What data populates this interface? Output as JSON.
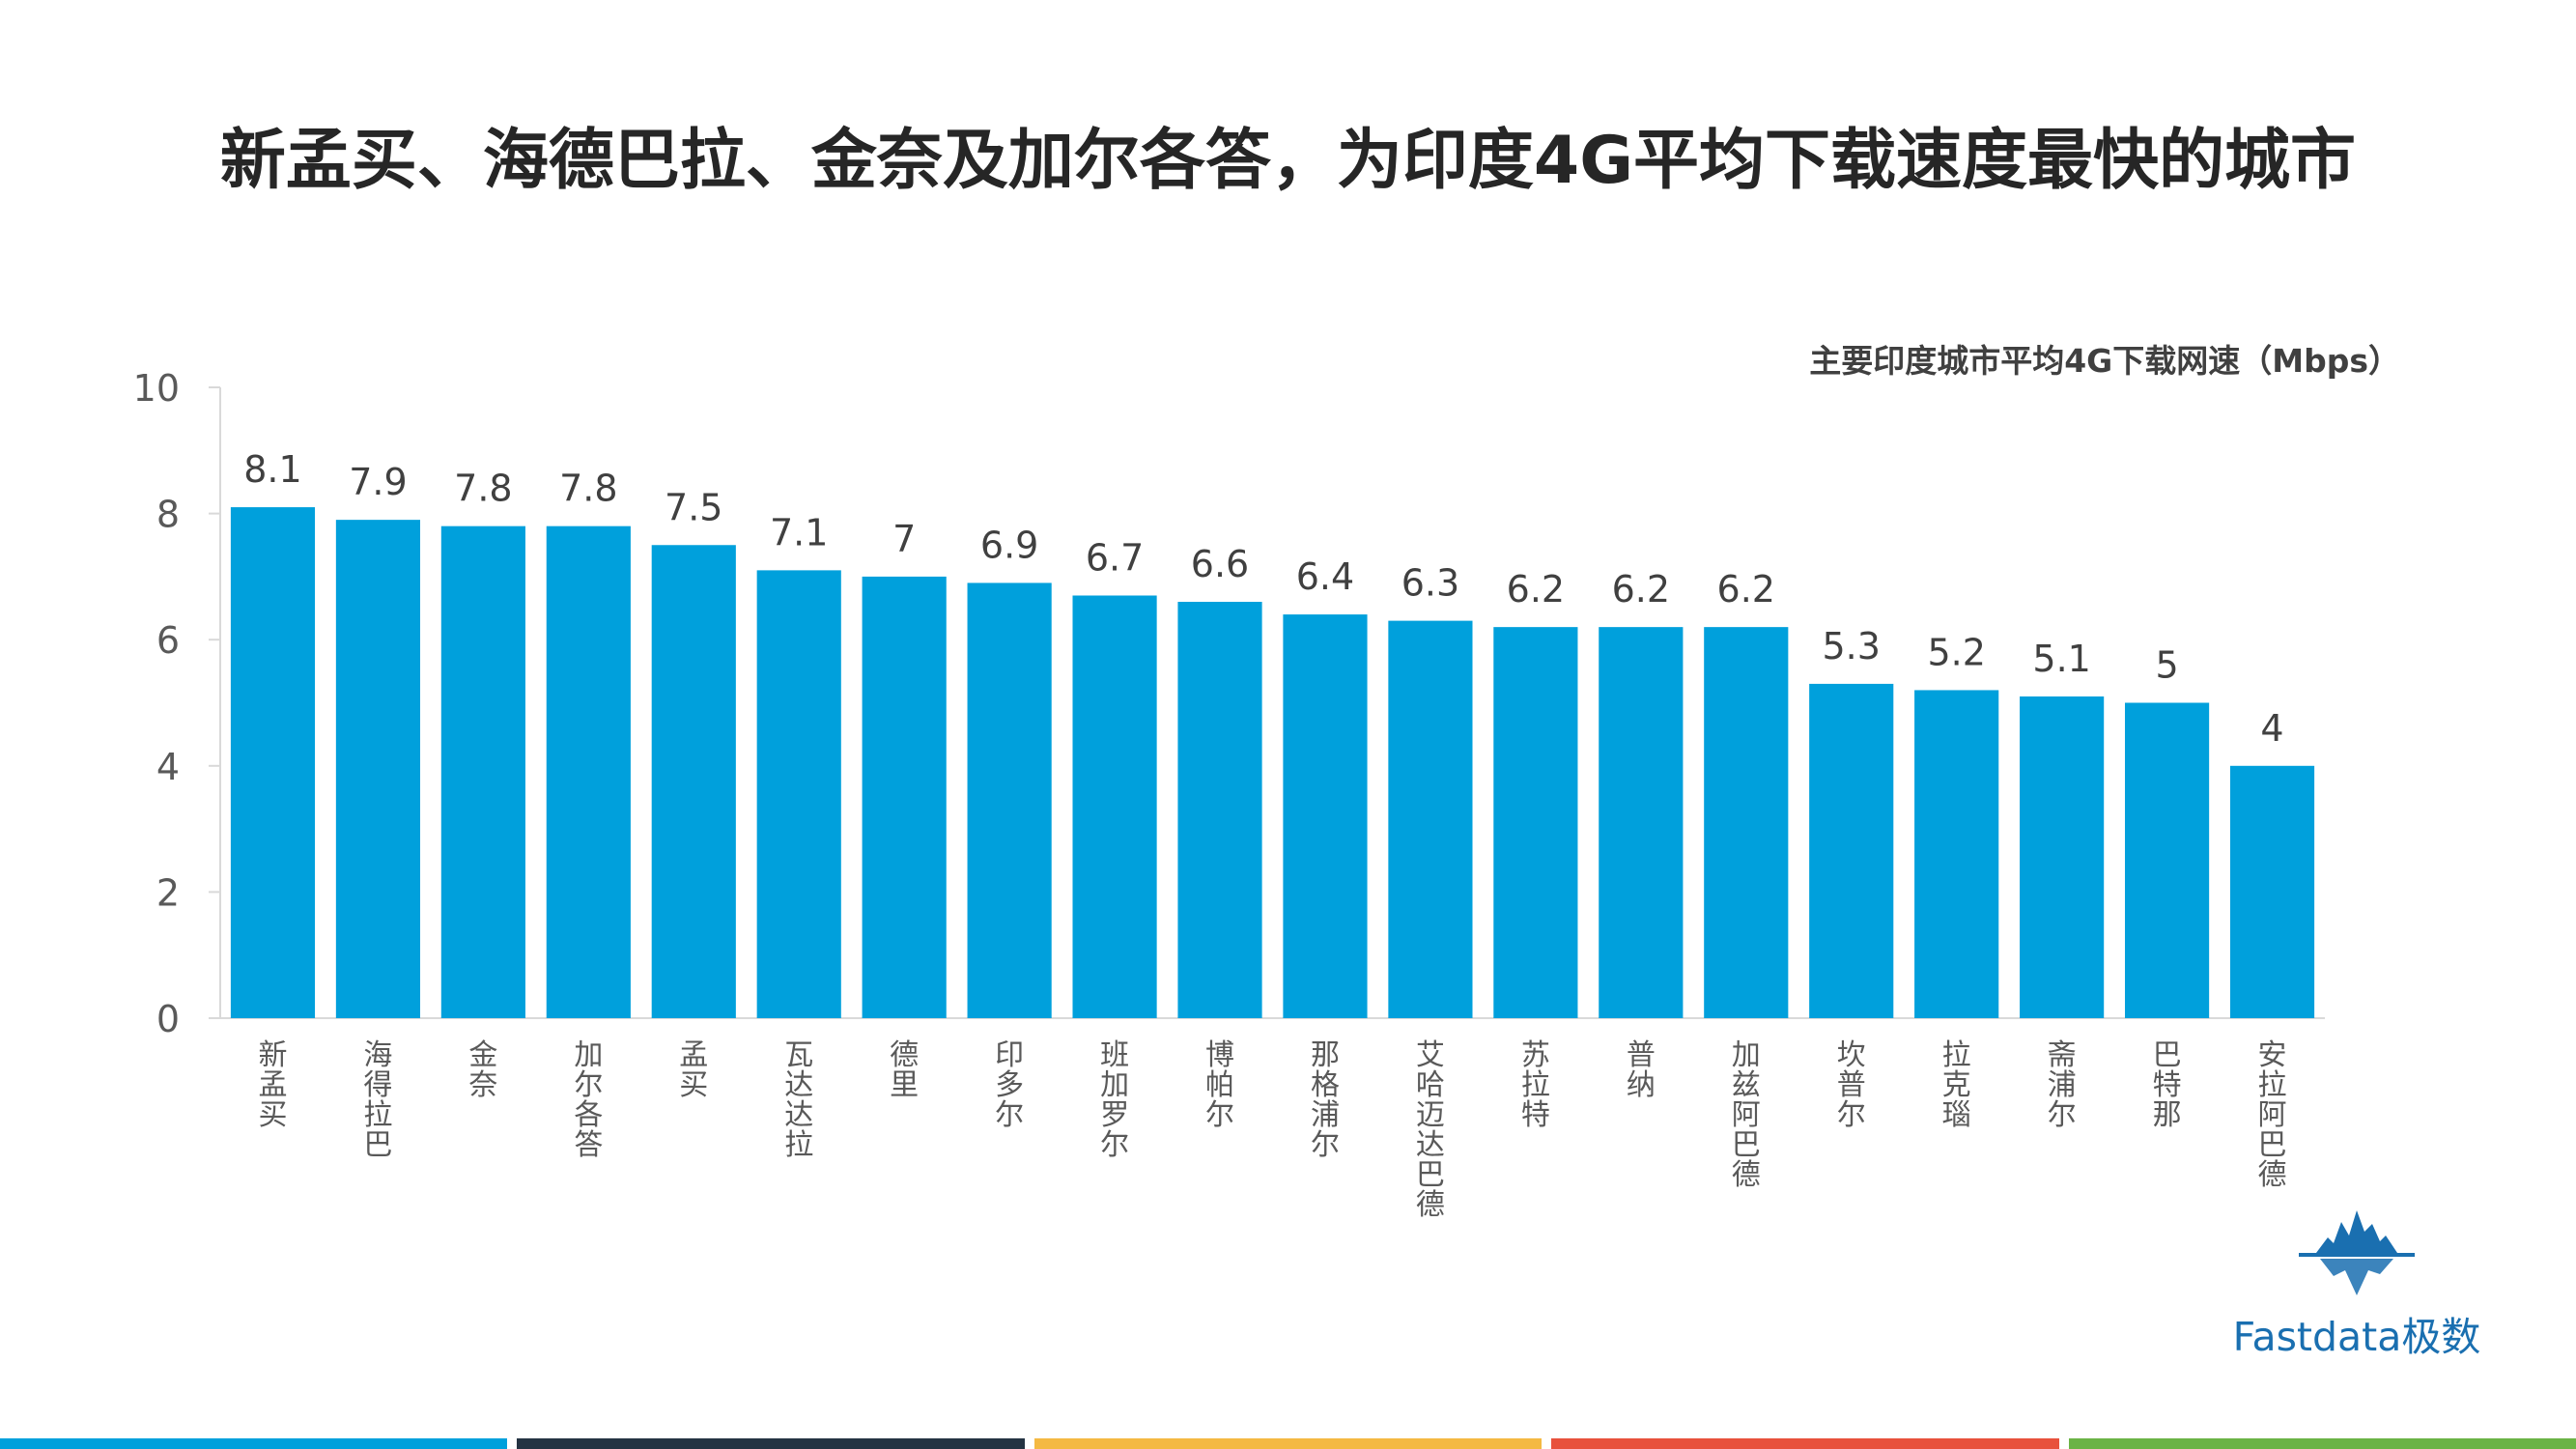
{
  "title": "新孟买、海德巴拉、金奈及加尔各答，为印度4G平均下载速度最快的城市",
  "chart_data": {
    "type": "bar",
    "title": "主要印度城市平均4G下载网速（Mbps）",
    "categories": [
      "新孟买",
      "海得拉巴",
      "金奈",
      "加尔各答",
      "孟买",
      "瓦达达拉",
      "德里",
      "印多尔",
      "班加罗尔",
      "博帕尔",
      "那格浦尔",
      "艾哈迈达巴德",
      "苏拉特",
      "普纳",
      "加兹阿巴德",
      "坎普尔",
      "拉克瑙",
      "斋浦尔",
      "巴特那",
      "安拉阿巴德"
    ],
    "values": [
      8.1,
      7.9,
      7.8,
      7.8,
      7.5,
      7.1,
      7,
      6.9,
      6.7,
      6.6,
      6.4,
      6.3,
      6.2,
      6.2,
      6.2,
      5.3,
      5.2,
      5.1,
      5,
      4
    ],
    "ylim": [
      0,
      10
    ],
    "yticks": [
      0,
      2,
      4,
      6,
      8,
      10
    ],
    "xlabel": "",
    "ylabel": "",
    "bar_color": "#00a0dc"
  },
  "logo": {
    "text": "Fastdata极数",
    "icon": "iceberg-icon",
    "color": "#1a6fb0"
  },
  "footer_colors": [
    "#00a0dc",
    "#243342",
    "#f4b942",
    "#e8513c",
    "#6bb345"
  ]
}
